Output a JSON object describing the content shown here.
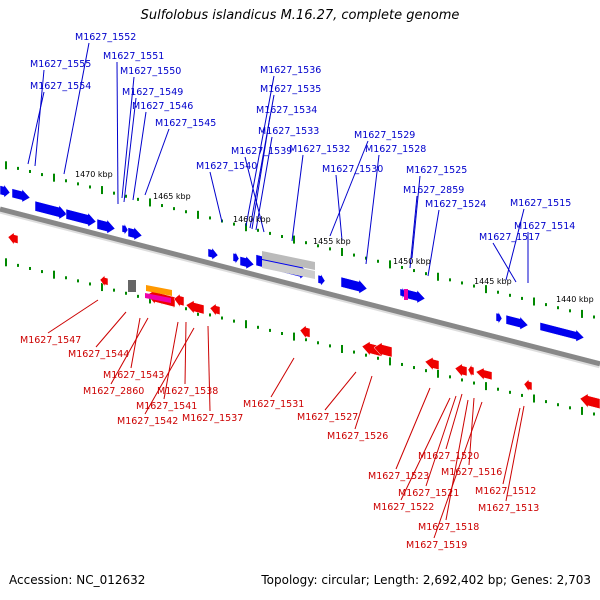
{
  "title": "Sulfolobus islandicus M.16.27, complete genome",
  "footer": {
    "accession": "Accession: NC_012632",
    "summary": "Topology: circular; Length: 2,692,402 bp; Genes: 2,703"
  },
  "colors": {
    "forward_gene": "#0000ee",
    "reverse_gene": "#ee0000",
    "forward_label": "#0000cc",
    "reverse_label": "#cc0000",
    "backbone": "#888888",
    "tick": "#008800",
    "rna_magenta": "#ee00aa",
    "rna_orange": "#ff9900",
    "pseudo_gray": "#bbbbbb"
  },
  "ruler_labels": [
    "1470 kbp",
    "1465 kbp",
    "1460 kbp",
    "1455 kbp",
    "1450 kbp",
    "1445 kbp",
    "1440 kbp"
  ],
  "forward_labels": [
    "M1627_1552",
    "M1627_1551",
    "M1627_1555",
    "M1627_1550",
    "M1627_1554",
    "M1627_1549",
    "M1627_1546",
    "M1627_1545",
    "M1627_1536",
    "M1627_1535",
    "M1627_1534",
    "M1627_1533",
    "M1627_1539",
    "M1627_1532",
    "M1627_1540",
    "M1627_1529",
    "M1627_1528",
    "M1627_1530",
    "M1627_1525",
    "M1627_2859",
    "M1627_1524",
    "M1627_1515",
    "M1627_1514",
    "M1627_1517"
  ],
  "reverse_labels": [
    "M1627_1547",
    "M1627_1544",
    "M1627_1543",
    "M1627_2860",
    "M1627_1538",
    "M1627_1541",
    "M1627_1542",
    "M1627_1537",
    "M1627_1531",
    "M1627_1527",
    "M1627_1526",
    "M1627_1520",
    "M1627_1516",
    "M1627_1523",
    "M1627_1521",
    "M1627_1512",
    "M1627_1522",
    "M1627_1513",
    "M1627_1518",
    "M1627_1519"
  ]
}
